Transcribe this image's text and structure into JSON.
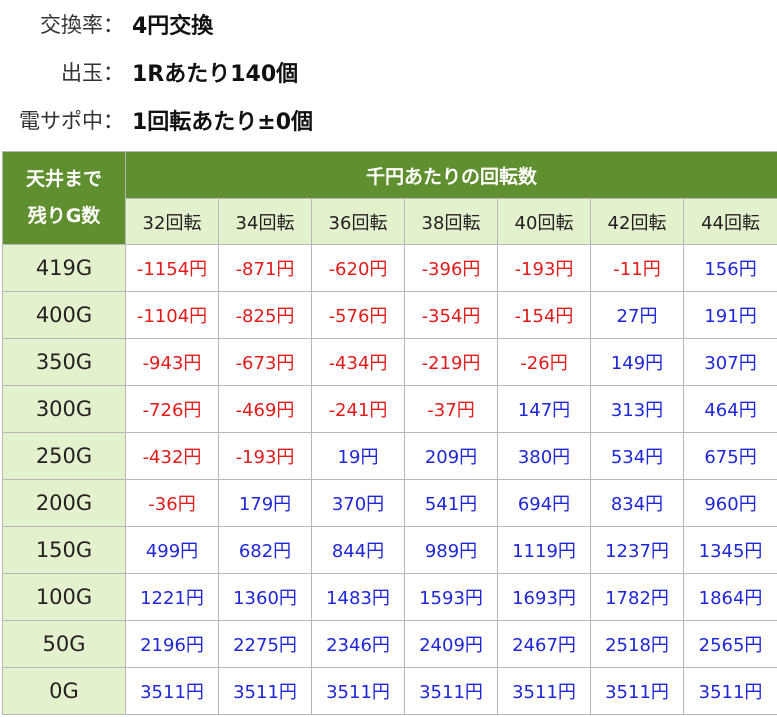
{
  "info": [
    {
      "label": "交換率：",
      "value": "4円交換"
    },
    {
      "label": "出玉：",
      "value": "1Rあたり140個"
    },
    {
      "label": "電サポ中：",
      "value": "1回転あたり±0個"
    }
  ],
  "table": {
    "corner_line1": "天井まで",
    "corner_line2": "残りG数",
    "span_header": "千円あたりの回転数",
    "columns": [
      "32回転",
      "34回転",
      "36回転",
      "38回転",
      "40回転",
      "42回転",
      "44回転"
    ],
    "rows": [
      {
        "label": "419G",
        "values": [
          "-1154円",
          "-871円",
          "-620円",
          "-396円",
          "-193円",
          "-11円",
          "156円"
        ]
      },
      {
        "label": "400G",
        "values": [
          "-1104円",
          "-825円",
          "-576円",
          "-354円",
          "-154円",
          "27円",
          "191円"
        ]
      },
      {
        "label": "350G",
        "values": [
          "-943円",
          "-673円",
          "-434円",
          "-219円",
          "-26円",
          "149円",
          "307円"
        ]
      },
      {
        "label": "300G",
        "values": [
          "-726円",
          "-469円",
          "-241円",
          "-37円",
          "147円",
          "313円",
          "464円"
        ]
      },
      {
        "label": "250G",
        "values": [
          "-432円",
          "-193円",
          "19円",
          "209円",
          "380円",
          "534円",
          "675円"
        ]
      },
      {
        "label": "200G",
        "values": [
          "-36円",
          "179円",
          "370円",
          "541円",
          "694円",
          "834円",
          "960円"
        ]
      },
      {
        "label": "150G",
        "values": [
          "499円",
          "682円",
          "844円",
          "989円",
          "1119円",
          "1237円",
          "1345円"
        ]
      },
      {
        "label": "100G",
        "values": [
          "1221円",
          "1360円",
          "1483円",
          "1593円",
          "1693円",
          "1782円",
          "1864円"
        ]
      },
      {
        "label": "50G",
        "values": [
          "2196円",
          "2275円",
          "2346円",
          "2409円",
          "2467円",
          "2518円",
          "2565円"
        ]
      },
      {
        "label": "0G",
        "values": [
          "3511円",
          "3511円",
          "3511円",
          "3511円",
          "3511円",
          "3511円",
          "3511円"
        ]
      }
    ]
  },
  "colors": {
    "header_green": "#5f8f2f",
    "light_green": "#e4f1cd",
    "negative_red": "#e21b1b",
    "positive_blue": "#1f27d8"
  }
}
